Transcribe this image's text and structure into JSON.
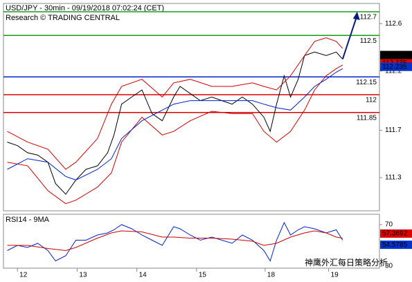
{
  "chart_data": [
    {
      "type": "line",
      "title": "USD/JPY - 30min - 09/19/2018 07:02:24 (CET)",
      "subtitle": "Research © TRADING CENTRAL",
      "xlim": [
        0,
        296
      ],
      "ylim": [
        111.02,
        112.77
      ],
      "yticks": [
        112.6,
        112.2,
        111.7,
        111.3
      ],
      "series": [
        {
          "color": "#000000",
          "x": [
            3,
            11,
            19,
            27,
            35,
            41,
            49,
            57,
            65,
            74,
            82,
            87,
            93,
            101,
            109,
            117,
            125,
            134,
            139,
            147,
            155,
            164,
            172,
            180,
            188,
            196,
            205,
            210,
            215,
            221,
            226,
            232,
            237,
            245,
            254,
            262,
            267
          ],
          "values": [
            111.6,
            111.57,
            111.51,
            111.49,
            111.43,
            111.25,
            111.16,
            111.28,
            111.37,
            111.4,
            111.51,
            111.66,
            111.92,
            111.98,
            112.04,
            111.84,
            111.78,
            111.98,
            112.07,
            112.01,
            111.95,
            111.98,
            111.95,
            111.92,
            111.98,
            111.92,
            111.81,
            111.69,
            111.92,
            112.16,
            111.98,
            112.13,
            112.33,
            112.36,
            112.33,
            112.36,
            112.3
          ]
        },
        {
          "color": "#cc0000",
          "x": [
            3,
            19,
            35,
            49,
            57,
            74,
            85,
            93,
            109,
            125,
            134,
            147,
            164,
            180,
            196,
            205,
            215,
            226,
            237,
            245,
            254,
            262,
            267
          ],
          "values": [
            111.69,
            111.6,
            111.54,
            111.37,
            111.43,
            111.63,
            111.92,
            112.07,
            112.13,
            111.98,
            112.1,
            112.13,
            112.07,
            112.07,
            112.1,
            112.07,
            112.04,
            112.16,
            112.33,
            112.45,
            112.48,
            112.45,
            112.39
          ]
        },
        {
          "color": "#cc0000",
          "x": [
            3,
            19,
            35,
            49,
            57,
            74,
            85,
            93,
            109,
            125,
            134,
            147,
            164,
            180,
            196,
            205,
            215,
            226,
            237,
            245,
            254,
            262,
            267
          ],
          "values": [
            111.43,
            111.4,
            111.19,
            111.08,
            111.11,
            111.22,
            111.34,
            111.6,
            111.81,
            111.66,
            111.69,
            111.78,
            111.86,
            111.84,
            111.84,
            111.69,
            111.6,
            111.69,
            111.87,
            112.04,
            112.16,
            112.22,
            112.25
          ]
        },
        {
          "color": "#0022cc",
          "x": [
            3,
            19,
            35,
            49,
            57,
            74,
            85,
            93,
            109,
            125,
            134,
            147,
            164,
            180,
            196,
            205,
            215,
            226,
            237,
            245,
            254,
            262,
            267
          ],
          "values": [
            111.37,
            111.46,
            111.43,
            111.31,
            111.28,
            111.37,
            111.46,
            111.63,
            111.78,
            111.87,
            111.92,
            111.95,
            111.95,
            111.95,
            111.95,
            111.92,
            111.89,
            111.87,
            111.98,
            112.07,
            112.13,
            112.19,
            112.22
          ]
        }
      ],
      "levels": [
        {
          "value": 112.7,
          "color": "#1a9a1a"
        },
        {
          "value": 112.5,
          "color": "#1a9a1a"
        },
        {
          "value": 112.15,
          "color": "#0022cc"
        },
        {
          "value": 112,
          "color": "#dd0000"
        },
        {
          "value": 111.85,
          "color": "#dd0000"
        }
      ],
      "price_tags": [
        {
          "value": 112.335,
          "color": "#e00000"
        },
        {
          "value": 112.335,
          "color": "#000000"
        },
        {
          "value": 112.235,
          "color": "#0033cc"
        }
      ]
    },
    {
      "type": "line",
      "title": "RSI14 - 9MA",
      "xlim": [
        0,
        296
      ],
      "ylim": [
        28,
        80
      ],
      "yticks": [
        70,
        30
      ],
      "xticks": [
        {
          "value": 11,
          "label": "12"
        },
        {
          "value": 58,
          "label": "13"
        },
        {
          "value": 105,
          "label": "14"
        },
        {
          "value": 152,
          "label": "15"
        },
        {
          "value": 206,
          "label": "18"
        },
        {
          "value": 256,
          "label": "19"
        }
      ],
      "series": [
        {
          "color": "#0022cc",
          "x": [
            3,
            11,
            19,
            27,
            35,
            41,
            49,
            57,
            65,
            74,
            82,
            87,
            93,
            101,
            109,
            117,
            125,
            134,
            139,
            147,
            155,
            164,
            172,
            180,
            188,
            196,
            205,
            210,
            215,
            221,
            226,
            232,
            237,
            245,
            254,
            262,
            267
          ],
          "values": [
            45,
            50,
            48,
            52,
            45,
            35,
            40,
            55,
            55,
            60,
            62,
            65,
            70,
            66,
            60,
            55,
            50,
            68,
            66,
            60,
            55,
            58,
            55,
            52,
            60,
            55,
            45,
            35,
            55,
            72,
            60,
            65,
            68,
            66,
            62,
            65,
            55
          ]
        },
        {
          "color": "#cc0000",
          "x": [
            3,
            19,
            35,
            49,
            57,
            74,
            85,
            93,
            109,
            125,
            134,
            147,
            164,
            180,
            196,
            205,
            215,
            226,
            237,
            245,
            254,
            262,
            267
          ],
          "values": [
            50,
            50,
            47,
            45,
            48,
            57,
            62,
            64,
            63,
            58,
            58,
            57,
            57,
            56,
            54,
            50,
            52,
            58,
            62,
            64,
            62,
            58,
            57
          ]
        }
      ],
      "price_tags": [
        {
          "value": 57.3692,
          "color": "#e00000"
        },
        {
          "value": 54.5785,
          "color": "#0033cc"
        }
      ]
    }
  ],
  "watermark": "神鹰外汇每日策略分析"
}
